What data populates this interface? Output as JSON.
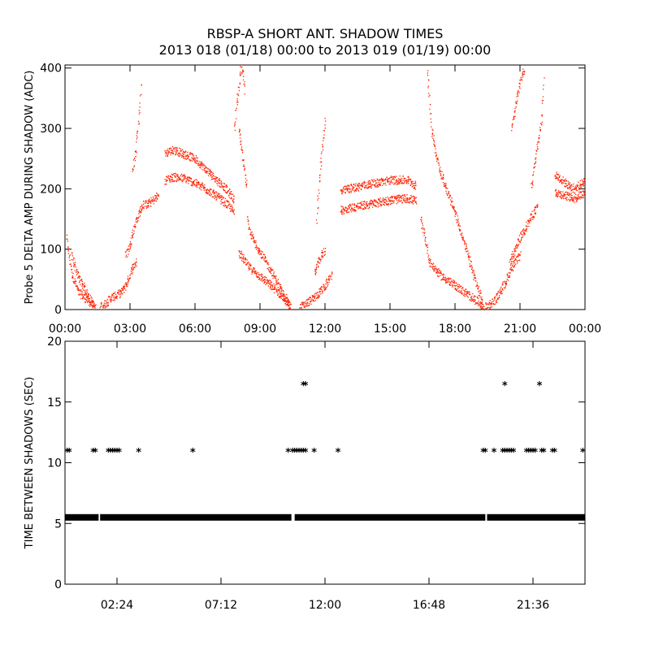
{
  "figure": {
    "title_line1": "RBSP-A SHORT ANT. SHADOW TIMES",
    "title_line2": "2013 018 (01/18) 00:00 to 2013 019 (01/19) 00:00"
  },
  "chart_data": [
    {
      "type": "scatter",
      "ylabel": "Probe 5 DELTA AMP DURING SHADOW (ADC)",
      "xlim": [
        0,
        24
      ],
      "ylim": [
        0,
        405
      ],
      "xtick_labels": [
        "00:00",
        "03:00",
        "06:00",
        "09:00",
        "12:00",
        "15:00",
        "18:00",
        "21:00",
        "00:00"
      ],
      "ytick_labels": [
        "0",
        "100",
        "200",
        "300",
        "400"
      ],
      "marker": "dot",
      "color": "#ff2200",
      "segments": [
        {
          "x": [
            0.05,
            0.3,
            0.6,
            0.9,
            1.2,
            1.4
          ],
          "y": [
            120,
            60,
            30,
            20,
            10,
            2
          ]
        },
        {
          "x": [
            0.3,
            0.6,
            0.9,
            1.2,
            1.35
          ],
          "y": [
            90,
            55,
            35,
            15,
            3
          ]
        },
        {
          "x": [
            1.6,
            1.9,
            2.1,
            2.4,
            2.6,
            2.8,
            3.1,
            3.3
          ],
          "y": [
            5,
            12,
            20,
            25,
            30,
            42,
            70,
            80
          ]
        },
        {
          "x": [
            2.8,
            3.0,
            3.2,
            3.4,
            3.6,
            3.8,
            4.0,
            4.3
          ],
          "y": [
            90,
            110,
            140,
            160,
            175,
            175,
            180,
            190
          ]
        },
        {
          "x": [
            3.1,
            3.25,
            3.4,
            3.5
          ],
          "y": [
            230,
            260,
            320,
            380
          ]
        },
        {
          "x": [
            4.6,
            5.0,
            5.5,
            6.0,
            6.5,
            7.0,
            7.3,
            7.6,
            7.8
          ],
          "y": [
            260,
            265,
            258,
            250,
            232,
            215,
            205,
            192,
            182
          ]
        },
        {
          "x": [
            4.6,
            5.0,
            5.5,
            6.0,
            6.5,
            7.0,
            7.3,
            7.6,
            7.8
          ],
          "y": [
            215,
            220,
            218,
            210,
            200,
            188,
            180,
            170,
            160
          ]
        },
        {
          "x": [
            7.8,
            7.9,
            8.0,
            8.1,
            8.2,
            8.3
          ],
          "y": [
            300,
            340,
            370,
            400,
            390,
            360
          ]
        },
        {
          "x": [
            8.0,
            8.5,
            9.0,
            9.5,
            10.0,
            10.4
          ],
          "y": [
            95,
            70,
            55,
            40,
            22,
            5
          ]
        },
        {
          "x": [
            8.4,
            8.5,
            8.7,
            9.0,
            9.5,
            10.0,
            10.4
          ],
          "y": [
            150,
            130,
            115,
            95,
            65,
            30,
            5
          ]
        },
        {
          "x": [
            8.0,
            8.2,
            8.4
          ],
          "y": [
            300,
            250,
            200
          ]
        },
        {
          "x": [
            10.8,
            11.0,
            11.5,
            12.0,
            12.3
          ],
          "y": [
            3,
            8,
            20,
            40,
            60
          ]
        },
        {
          "x": [
            11.5,
            11.7,
            11.9,
            12.0
          ],
          "y": [
            60,
            80,
            95,
            100
          ]
        },
        {
          "x": [
            11.6,
            11.8,
            12.0
          ],
          "y": [
            150,
            250,
            320
          ]
        },
        {
          "x": [
            12.7,
            13.0,
            14.0,
            15.0,
            15.8,
            16.2
          ],
          "y": [
            195,
            200,
            208,
            215,
            215,
            205
          ]
        },
        {
          "x": [
            12.7,
            13.0,
            14.0,
            15.0,
            15.8,
            16.2
          ],
          "y": [
            165,
            168,
            175,
            182,
            185,
            180
          ]
        },
        {
          "x": [
            16.4,
            16.6,
            16.8,
            17.0,
            17.4,
            17.8,
            18.2,
            18.6,
            19.0,
            19.3
          ],
          "y": [
            150,
            120,
            80,
            70,
            55,
            45,
            35,
            25,
            15,
            3
          ]
        },
        {
          "x": [
            16.7,
            16.9,
            17.1,
            17.3,
            17.6,
            18.0,
            18.5,
            19.0,
            19.3
          ],
          "y": [
            400,
            300,
            260,
            230,
            200,
            160,
            100,
            40,
            5
          ]
        },
        {
          "x": [
            19.4,
            19.6,
            19.8,
            20.0,
            20.3,
            20.6,
            21.0
          ],
          "y": [
            5,
            10,
            15,
            25,
            45,
            70,
            90
          ]
        },
        {
          "x": [
            20.5,
            20.8,
            21.0,
            21.3,
            21.6,
            21.8
          ],
          "y": [
            80,
            100,
            120,
            140,
            160,
            170
          ]
        },
        {
          "x": [
            20.6,
            20.8,
            21.0,
            21.2
          ],
          "y": [
            300,
            340,
            380,
            400
          ]
        },
        {
          "x": [
            21.5,
            21.7,
            22.0,
            22.1
          ],
          "y": [
            200,
            250,
            320,
            390
          ]
        },
        {
          "x": [
            22.6,
            23.0,
            23.5,
            24.0
          ],
          "y": [
            195,
            190,
            185,
            195
          ]
        },
        {
          "x": [
            22.6,
            23.0,
            23.5,
            24.0
          ],
          "y": [
            225,
            212,
            200,
            215
          ]
        }
      ]
    },
    {
      "type": "scatter",
      "ylabel": "TIME BETWEEN SHADOWS (SEC)",
      "xlim": [
        0,
        24
      ],
      "ylim": [
        0,
        20
      ],
      "xtick_labels": [
        "02:24",
        "07:12",
        "12:00",
        "16:48",
        "21:36"
      ],
      "ytick_labels": [
        "0",
        "5",
        "10",
        "15",
        "20"
      ],
      "marker": "asterisk",
      "color": "#000000",
      "baseline": {
        "y": 5.5,
        "segments": [
          [
            0,
            1.55
          ],
          [
            1.62,
            10.45
          ],
          [
            10.6,
            19.4
          ],
          [
            19.48,
            24.0
          ]
        ]
      },
      "x": [
        0.1,
        0.2,
        1.3,
        1.4,
        2.0,
        2.1,
        2.2,
        2.3,
        2.4,
        2.5,
        3.4,
        5.9,
        10.3,
        10.5,
        10.6,
        10.7,
        10.8,
        10.9,
        11.0,
        11.1,
        11.5,
        12.6,
        19.3,
        19.4,
        19.8,
        20.2,
        20.3,
        20.4,
        20.5,
        20.6,
        20.7,
        21.3,
        21.4,
        21.5,
        21.6,
        21.7,
        22.0,
        22.1,
        22.5,
        22.6,
        23.9,
        20.3,
        21.9,
        11.0,
        11.1
      ],
      "y": [
        10.9,
        10.9,
        10.9,
        10.9,
        10.9,
        10.9,
        10.9,
        10.9,
        10.9,
        10.9,
        10.9,
        10.9,
        10.9,
        10.9,
        10.9,
        10.9,
        10.9,
        10.9,
        10.9,
        10.9,
        10.9,
        10.9,
        10.9,
        10.9,
        10.9,
        10.9,
        10.9,
        10.9,
        10.9,
        10.9,
        10.9,
        10.9,
        10.9,
        10.9,
        10.9,
        10.9,
        10.9,
        10.9,
        10.9,
        10.9,
        10.9,
        16.4,
        16.4,
        16.4,
        16.4
      ]
    }
  ]
}
